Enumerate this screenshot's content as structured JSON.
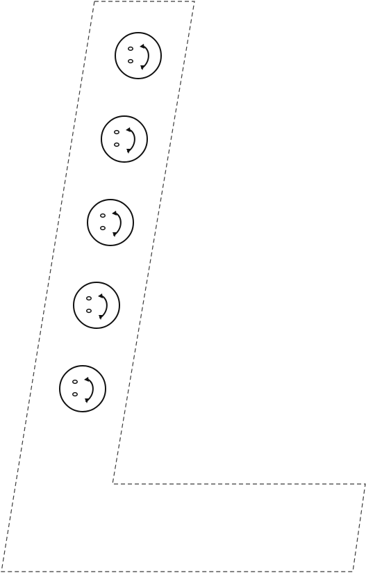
{
  "sheet": {
    "kind": "letter tracing worksheet",
    "letter": "L",
    "outline_style": "dashed",
    "outline_color": "#3a3a3a",
    "background_color": "#ffffff"
  },
  "stickers": {
    "icon": "smiley-face-icon",
    "count": 5,
    "line_color": "#111111"
  }
}
